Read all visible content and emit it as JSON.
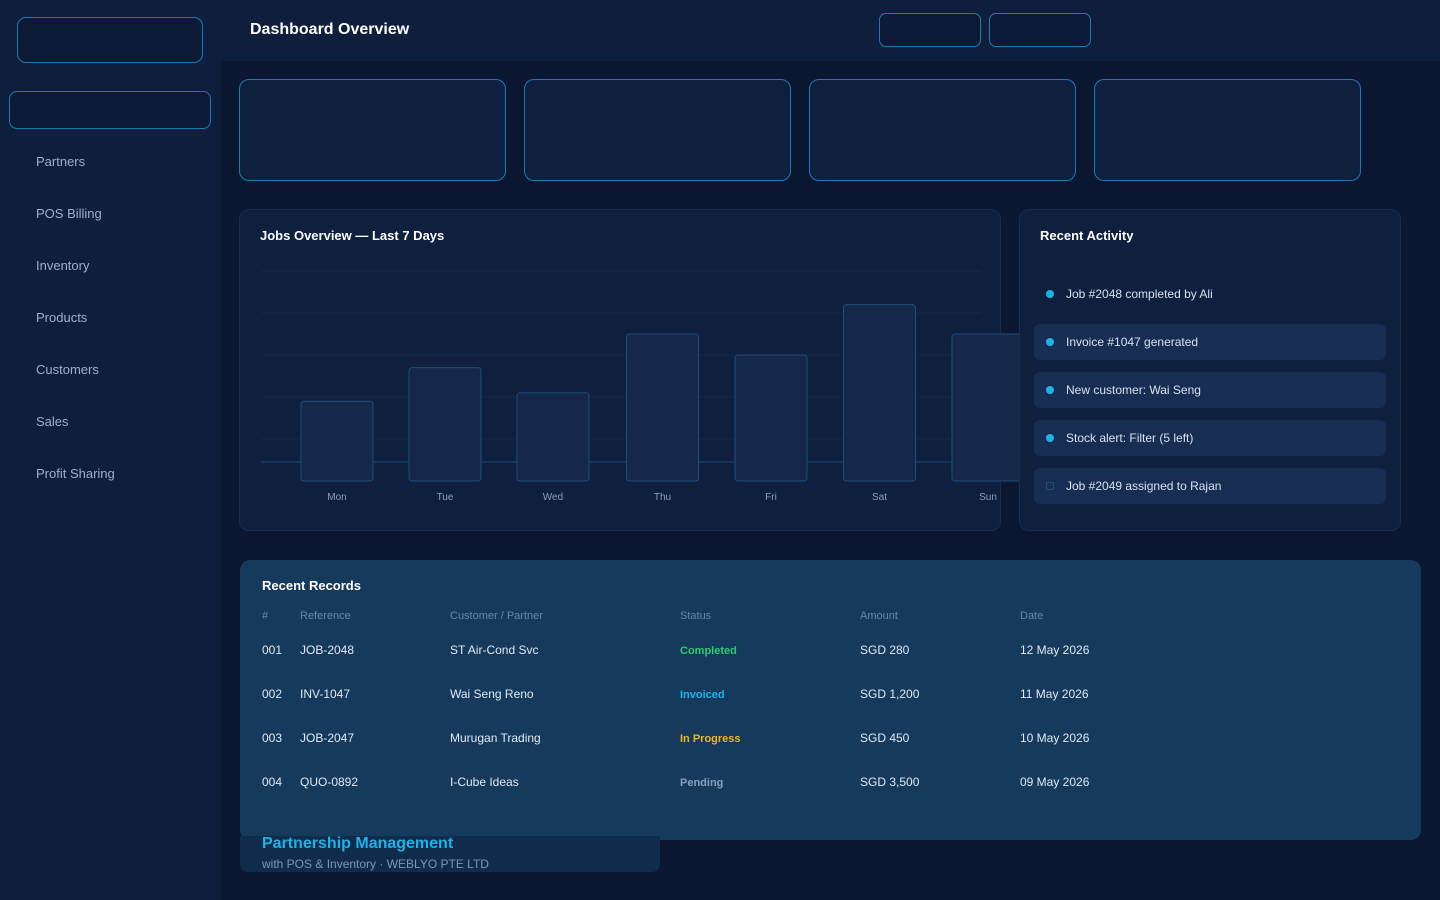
{
  "sidebar": {
    "items": [
      {
        "label": "Partners"
      },
      {
        "label": "POS Billing"
      },
      {
        "label": "Inventory"
      },
      {
        "label": "Products"
      },
      {
        "label": "Customers"
      },
      {
        "label": "Sales"
      },
      {
        "label": "Profit Sharing"
      }
    ]
  },
  "header": {
    "title": "Dashboard Overview"
  },
  "chart_panel": {
    "title": "Jobs Overview — Last 7 Days"
  },
  "chart_data": {
    "type": "bar",
    "title": "Jobs Overview — Last 7 Days",
    "categories": [
      "Mon",
      "Tue",
      "Wed",
      "Thu",
      "Fri",
      "Sat",
      "Sun"
    ],
    "values": [
      19,
      27,
      21,
      35,
      30,
      42,
      35
    ],
    "xlabel": "",
    "ylabel": "",
    "ylim": [
      0,
      50
    ],
    "grid": true
  },
  "activity": {
    "title": "Recent Activity",
    "items": [
      {
        "text": "Job #2048 completed by Ali",
        "shaded": false,
        "dot": "filled"
      },
      {
        "text": "Invoice #1047 generated",
        "shaded": true,
        "dot": "filled"
      },
      {
        "text": "New customer: Wai Seng",
        "shaded": true,
        "dot": "filled"
      },
      {
        "text": "Stock alert: Filter (5 left)",
        "shaded": true,
        "dot": "filled"
      },
      {
        "text": "Job #2049 assigned to Rajan",
        "shaded": true,
        "dot": "hollow"
      }
    ]
  },
  "records": {
    "title": "Recent Records",
    "columns": [
      "#",
      "Reference",
      "Customer / Partner",
      "Status",
      "Amount",
      "Date"
    ],
    "rows": [
      {
        "num": "001",
        "ref": "JOB-2048",
        "customer": "ST Air-Cond Svc",
        "status": "Completed",
        "status_color": "#2ecc71",
        "amount": "SGD 280",
        "date": "12 May 2026"
      },
      {
        "num": "002",
        "ref": "INV-1047",
        "customer": "Wai Seng Reno",
        "status": "Invoiced",
        "status_color": "#1cb4e8",
        "amount": "SGD 1,200",
        "date": "11 May 2026"
      },
      {
        "num": "003",
        "ref": "JOB-2047",
        "customer": "Murugan Trading",
        "status": "In Progress",
        "status_color": "#f0b429",
        "amount": "SGD 450",
        "date": "10 May 2026"
      },
      {
        "num": "004",
        "ref": "QUO-0892",
        "customer": "I-Cube Ideas",
        "status": "Pending",
        "status_color": "#8aa0bc",
        "amount": "SGD 3,500",
        "date": "09 May 2026"
      }
    ]
  },
  "footer": {
    "title": "Partnership Management",
    "subtitle": "with POS & Inventory · WEBLYO PTE LTD"
  },
  "colors": {
    "accent": "#1cb4e8",
    "border": "#1a7bb8",
    "bar_fill": "#16284a",
    "bar_stroke": "#1e4d78"
  }
}
